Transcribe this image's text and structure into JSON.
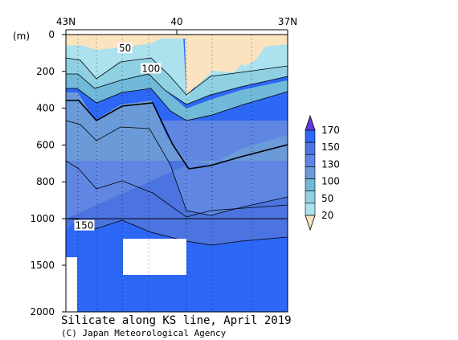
{
  "chart_data": {
    "type": "heatmap",
    "title": "Silicate along KS line, April 2019",
    "credit": "(C) Japan Meteorological Agency",
    "y_unit": "(m)",
    "x_ticks": [
      {
        "value": 43,
        "label": "43N"
      },
      {
        "value": 40,
        "label": "40"
      },
      {
        "value": 37,
        "label": "37N"
      }
    ],
    "xlim": [
      43,
      37
    ],
    "y_ticks_upper": [
      "0",
      "200",
      "400",
      "600",
      "800",
      "1000"
    ],
    "y_ticks_lower": [
      "1500",
      "2000"
    ],
    "ylim": [
      0,
      2000
    ],
    "y_break": 1000,
    "legend_levels": [
      "20",
      "50",
      "100",
      "130",
      "150",
      "170"
    ],
    "legend_colors": [
      "#fbe3bf",
      "#abe2ee",
      "#8fd1e3",
      "#70b9d8",
      "#6b9ad8",
      "#5f86e2",
      "#4c74e0",
      "#2d67f5",
      "#6437e8"
    ],
    "contour_labels": [
      {
        "text": "50",
        "lat": 41.4,
        "depth": 75
      },
      {
        "text": "100",
        "lat": 40.7,
        "depth": 185
      },
      {
        "text": "150",
        "lat": 42.5,
        "depth": 1075
      }
    ]
  }
}
